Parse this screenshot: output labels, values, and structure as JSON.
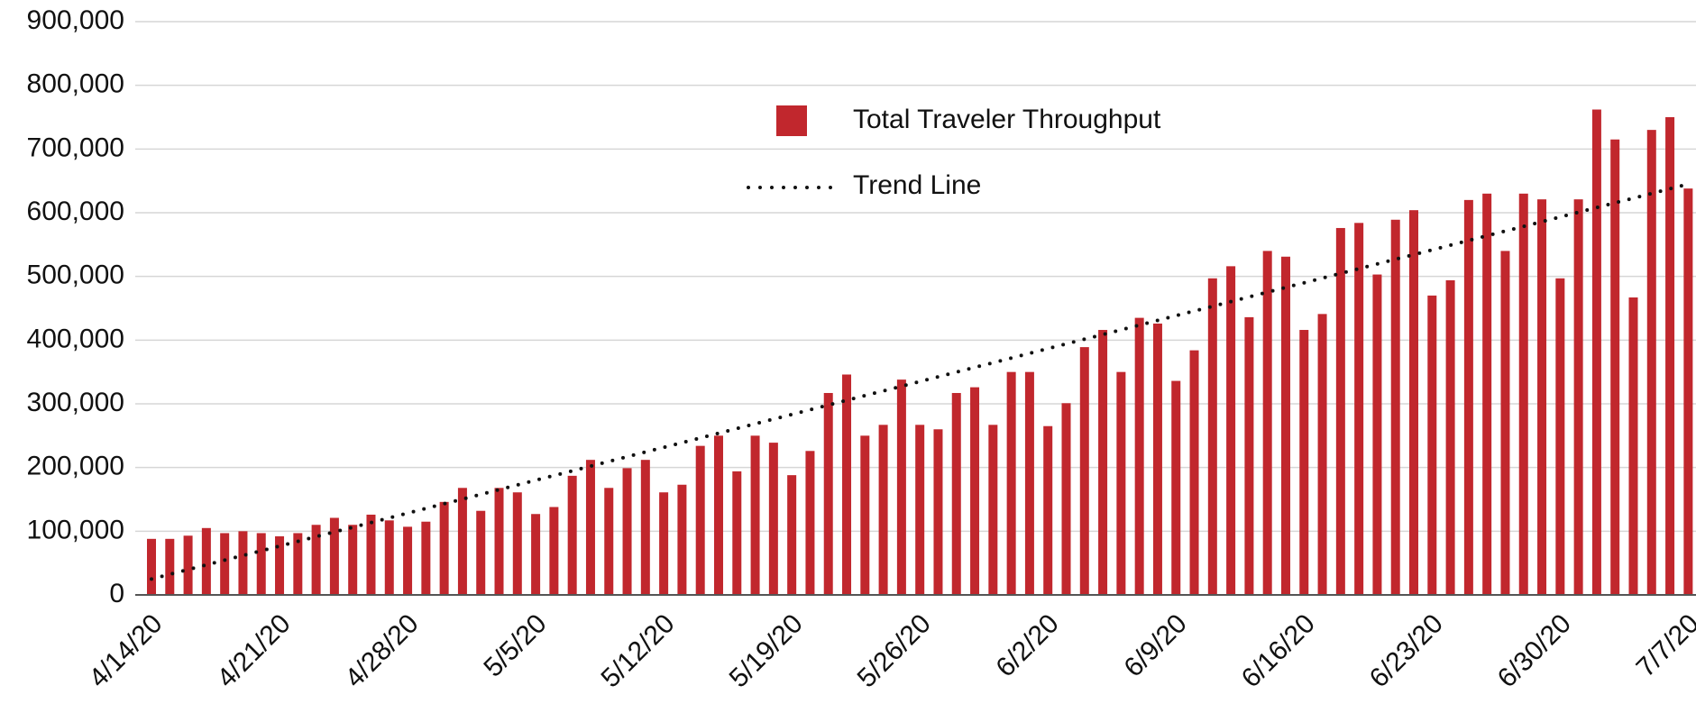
{
  "chart_data": {
    "type": "bar",
    "categories": [
      "4/14/20",
      null,
      null,
      null,
      null,
      null,
      null,
      "4/21/20",
      null,
      null,
      null,
      null,
      null,
      null,
      "4/28/20",
      null,
      null,
      null,
      null,
      null,
      null,
      "5/5/20",
      null,
      null,
      null,
      null,
      null,
      null,
      "5/12/20",
      null,
      null,
      null,
      null,
      null,
      null,
      "5/19/20",
      null,
      null,
      null,
      null,
      null,
      null,
      "5/26/20",
      null,
      null,
      null,
      null,
      null,
      null,
      "6/2/20",
      null,
      null,
      null,
      null,
      null,
      null,
      "6/9/20",
      null,
      null,
      null,
      null,
      null,
      null,
      "6/16/20",
      null,
      null,
      null,
      null,
      null,
      null,
      "6/23/20",
      null,
      null,
      null,
      null,
      null,
      null,
      "6/30/20",
      null,
      null,
      null,
      null,
      null,
      null,
      "7/7/20"
    ],
    "series": [
      {
        "name": "Total Traveler Throughput",
        "color": "#c1272d",
        "values": [
          88000,
          88000,
          93000,
          105000,
          97000,
          100000,
          97000,
          92000,
          97000,
          110000,
          121000,
          110000,
          126000,
          117000,
          107000,
          115000,
          146000,
          168000,
          132000,
          168000,
          161000,
          127000,
          138000,
          187000,
          212000,
          168000,
          199000,
          212000,
          161000,
          173000,
          234000,
          250000,
          194000,
          250000,
          239000,
          188000,
          226000,
          317000,
          346000,
          250000,
          267000,
          338000,
          267000,
          260000,
          317000,
          326000,
          267000,
          350000,
          350000,
          265000,
          301000,
          389000,
          416000,
          350000,
          435000,
          426000,
          336000,
          384000,
          497000,
          516000,
          436000,
          540000,
          531000,
          416000,
          441000,
          576000,
          584000,
          503000,
          589000,
          604000,
          470000,
          494000,
          620000,
          630000,
          540000,
          630000,
          621000,
          497000,
          621000,
          762000,
          715000,
          467000,
          730000,
          750000,
          638000
        ]
      }
    ],
    "trend_line": {
      "name": "Trend Line",
      "color": "#111111",
      "start": 25000,
      "end": 645000
    },
    "ylim": [
      0,
      900000
    ],
    "yticks": [
      0,
      {
        "value": 100000,
        "label": "100,000"
      },
      {
        "value": 200000,
        "label": "200,000"
      },
      {
        "value": 300000,
        "label": "300,000"
      },
      {
        "value": 400000,
        "label": "400,000"
      },
      {
        "value": 500000,
        "label": "500,000"
      },
      {
        "value": 600000,
        "label": "600,000"
      },
      {
        "value": 700000,
        "label": "700,000"
      },
      {
        "value": 800000,
        "label": "800,000"
      },
      {
        "value": 900000,
        "label": "900,000"
      }
    ],
    "grid": true
  }
}
